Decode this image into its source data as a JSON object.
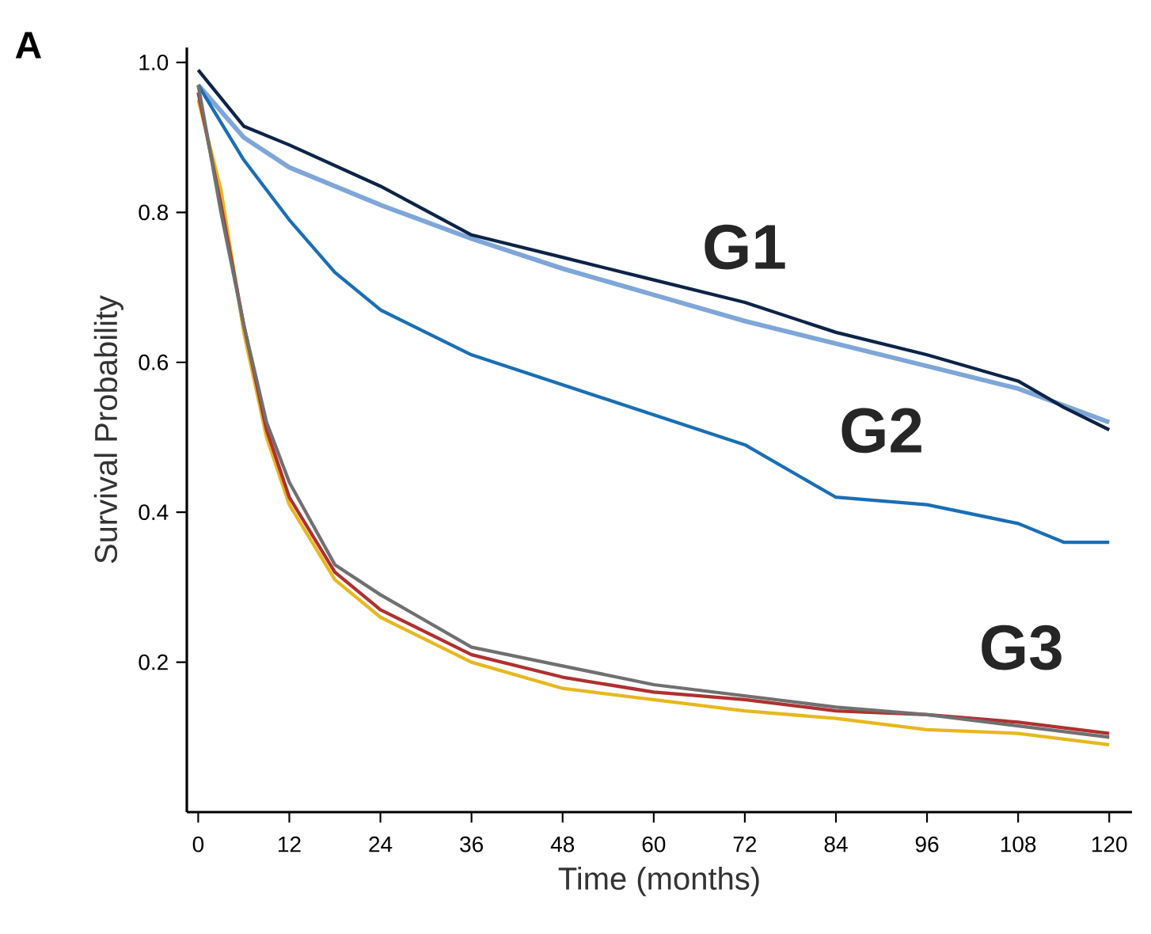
{
  "chart_data": {
    "type": "line",
    "xlabel": "Time (months)",
    "ylabel": "Survival Probability",
    "xlim": [
      -1.5,
      123
    ],
    "ylim": [
      0,
      1.02
    ],
    "xticks": [
      0,
      12,
      24,
      36,
      48,
      60,
      72,
      84,
      96,
      108,
      120
    ],
    "yticks": [
      0.2,
      0.4,
      0.6,
      0.8,
      {
        "value": 1,
        "label": "1.0"
      }
    ],
    "series": [
      {
        "color": "#7fa6d8",
        "x": [
          0,
          6,
          12,
          24,
          36,
          48,
          60,
          72,
          84,
          96,
          108,
          120
        ],
        "values": [
          0.97,
          0.9,
          0.86,
          0.81,
          0.765,
          0.725,
          0.69,
          0.655,
          0.625,
          0.595,
          0.565,
          0.52
        ]
      },
      {
        "color": "#0d2447",
        "x": [
          0,
          6,
          12,
          24,
          36,
          48,
          60,
          72,
          84,
          96,
          108,
          114,
          120
        ],
        "values": [
          0.99,
          0.915,
          0.89,
          0.835,
          0.77,
          0.74,
          0.71,
          0.68,
          0.64,
          0.61,
          0.575,
          0.54,
          0.51
        ]
      },
      {
        "color": "#1a6eb5",
        "x": [
          0,
          6,
          12,
          18,
          24,
          36,
          48,
          60,
          72,
          84,
          96,
          108,
          114,
          120
        ],
        "values": [
          0.97,
          0.87,
          0.79,
          0.72,
          0.67,
          0.61,
          0.57,
          0.53,
          0.49,
          0.42,
          0.41,
          0.385,
          0.36,
          0.36
        ]
      },
      {
        "color": "#e6b820",
        "x": [
          0,
          3,
          6,
          9,
          12,
          18,
          24,
          36,
          48,
          60,
          72,
          84,
          96,
          108,
          120
        ],
        "values": [
          0.95,
          0.83,
          0.64,
          0.5,
          0.41,
          0.31,
          0.26,
          0.2,
          0.165,
          0.15,
          0.135,
          0.125,
          0.11,
          0.105,
          0.09
        ]
      },
      {
        "color": "#b03030",
        "x": [
          0,
          3,
          6,
          9,
          12,
          18,
          24,
          36,
          48,
          60,
          72,
          84,
          96,
          108,
          120
        ],
        "values": [
          0.96,
          0.81,
          0.65,
          0.51,
          0.42,
          0.32,
          0.27,
          0.21,
          0.18,
          0.16,
          0.15,
          0.135,
          0.13,
          0.12,
          0.105
        ]
      },
      {
        "color": "#707070",
        "x": [
          0,
          3,
          6,
          9,
          12,
          18,
          24,
          36,
          48,
          60,
          72,
          84,
          96,
          108,
          120
        ],
        "values": [
          0.97,
          0.8,
          0.65,
          0.52,
          0.44,
          0.33,
          0.29,
          0.22,
          0.195,
          0.17,
          0.155,
          0.14,
          0.13,
          0.115,
          0.1
        ]
      }
    ],
    "annotations": [
      "A",
      "G1",
      "G2",
      "G3"
    ]
  }
}
